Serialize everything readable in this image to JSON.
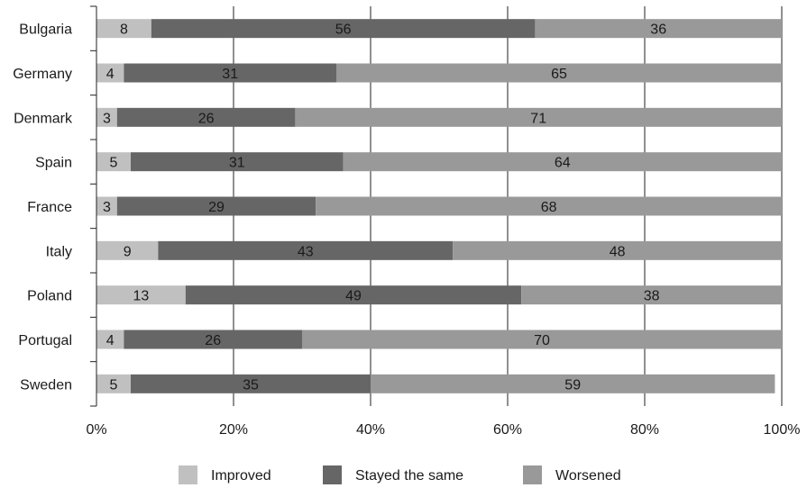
{
  "chart_data": {
    "type": "bar",
    "orientation": "horizontal",
    "stacked": true,
    "percent_stacked": true,
    "categories": [
      "Bulgaria",
      "Germany",
      "Denmark",
      "Spain",
      "France",
      "Italy",
      "Poland",
      "Portugal",
      "Sweden"
    ],
    "series": [
      {
        "name": "Improved",
        "values": [
          8,
          4,
          3,
          5,
          3,
          9,
          13,
          4,
          5
        ],
        "color": "#c0c0c0"
      },
      {
        "name": "Stayed the same",
        "values": [
          56,
          31,
          26,
          31,
          29,
          43,
          49,
          26,
          35
        ],
        "color": "#666666"
      },
      {
        "name": "Worsened",
        "values": [
          36,
          65,
          71,
          64,
          68,
          48,
          38,
          70,
          59
        ],
        "color": "#999999"
      }
    ],
    "xlim": [
      0,
      100
    ],
    "x_ticks": [
      "0%",
      "20%",
      "40%",
      "60%",
      "80%",
      "100%"
    ],
    "grid": "vertical",
    "legend_position": "bottom"
  }
}
